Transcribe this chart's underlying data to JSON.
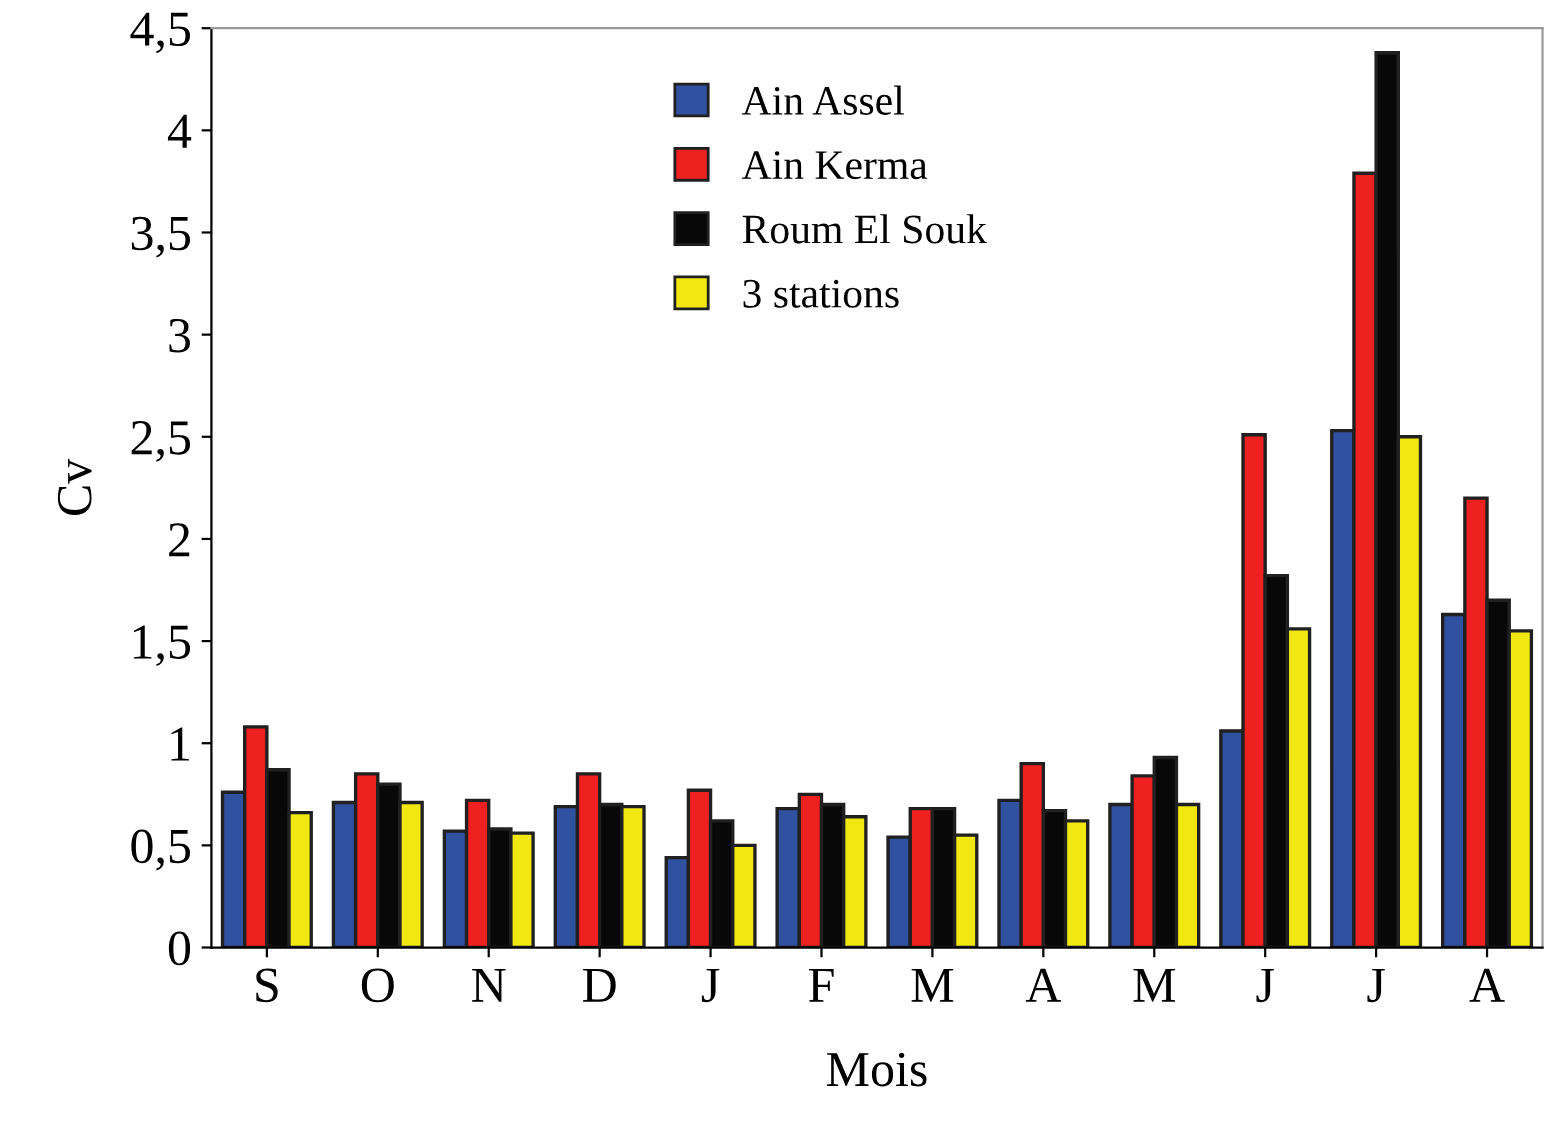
{
  "chart_data": {
    "type": "bar",
    "xlabel": "Mois",
    "ylabel": "Cv",
    "categories": [
      "S",
      "O",
      "N",
      "D",
      "J",
      "F",
      "M",
      "A",
      "M",
      "J",
      "J",
      "A"
    ],
    "series": [
      {
        "name": "Ain Assel",
        "color": "#3050a0",
        "values": [
          0.76,
          0.71,
          0.57,
          0.69,
          0.44,
          0.68,
          0.54,
          0.72,
          0.7,
          1.06,
          2.53,
          1.63
        ]
      },
      {
        "name": "Ain Kerma",
        "color": "#ee2020",
        "values": [
          1.08,
          0.85,
          0.72,
          0.85,
          0.77,
          0.75,
          0.68,
          0.9,
          0.84,
          2.51,
          3.79,
          2.2
        ]
      },
      {
        "name": "Roum El Souk",
        "color": "#080808",
        "values": [
          0.87,
          0.8,
          0.58,
          0.7,
          0.62,
          0.7,
          0.68,
          0.67,
          0.93,
          1.82,
          4.38,
          1.7
        ]
      },
      {
        "name": "3 stations",
        "color": "#f0e810",
        "values": [
          0.66,
          0.71,
          0.56,
          0.69,
          0.5,
          0.64,
          0.55,
          0.62,
          0.7,
          1.56,
          2.5,
          1.55
        ]
      }
    ],
    "ylim": [
      0,
      4.5
    ],
    "yticks": [
      0,
      {
        "value": 0.5,
        "label": "0,5"
      },
      1,
      {
        "value": 1.5,
        "label": "1,5"
      },
      2,
      {
        "value": 2.5,
        "label": "2,5"
      },
      3,
      {
        "value": 3.5,
        "label": "3,5"
      },
      4,
      {
        "value": 4.5,
        "label": "4,5"
      }
    ],
    "grid": false,
    "legend": "top"
  }
}
